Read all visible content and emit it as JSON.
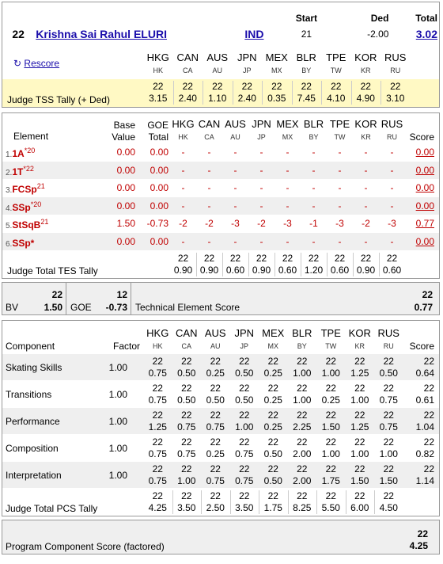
{
  "header": {
    "rank": "22",
    "skater_name": "Krishna Sai Rahul ELURI",
    "nation": "IND",
    "start_label": "Start",
    "start_value": "21",
    "ded_label": "Ded",
    "ded_value": "-2.00",
    "total_label": "Total",
    "total_value": "3.02",
    "rescore_label": "Rescore"
  },
  "judges": [
    {
      "code": "HKG",
      "sub": "HK"
    },
    {
      "code": "CAN",
      "sub": "CA"
    },
    {
      "code": "AUS",
      "sub": "AU"
    },
    {
      "code": "JPN",
      "sub": "JP"
    },
    {
      "code": "MEX",
      "sub": "MX"
    },
    {
      "code": "BLR",
      "sub": "BY"
    },
    {
      "code": "TPE",
      "sub": "TW"
    },
    {
      "code": "KOR",
      "sub": "KR"
    },
    {
      "code": "RUS",
      "sub": "RU"
    }
  ],
  "tss_tally": {
    "label": "Judge TSS Tally (+ Ded)",
    "ranks": [
      "22",
      "22",
      "22",
      "22",
      "22",
      "22",
      "22",
      "22",
      "22"
    ],
    "values": [
      "3.15",
      "2.40",
      "1.10",
      "2.40",
      "0.35",
      "7.45",
      "4.10",
      "4.90",
      "3.10"
    ]
  },
  "elements_table": {
    "col_element": "Element",
    "col_base_1": "Base",
    "col_base_2": "Value",
    "col_goe_1": "GOE",
    "col_goe_2": "Total",
    "col_score": "Score",
    "rows": [
      {
        "idx": "1.",
        "name": "1A",
        "sup": "*20",
        "base": "0.00",
        "goe": "0.00",
        "j": [
          "-",
          "-",
          "-",
          "-",
          "-",
          "-",
          "-",
          "-",
          "-"
        ],
        "score": "0.00"
      },
      {
        "idx": "2.",
        "name": "1T",
        "sup": "*22",
        "base": "0.00",
        "goe": "0.00",
        "j": [
          "-",
          "-",
          "-",
          "-",
          "-",
          "-",
          "-",
          "-",
          "-"
        ],
        "score": "0.00"
      },
      {
        "idx": "3.",
        "name": "FCSp",
        "sup": "21",
        "base": "0.00",
        "goe": "0.00",
        "j": [
          "-",
          "-",
          "-",
          "-",
          "-",
          "-",
          "-",
          "-",
          "-"
        ],
        "score": "0.00"
      },
      {
        "idx": "4.",
        "name": "SSp",
        "sup": "*20",
        "base": "0.00",
        "goe": "0.00",
        "j": [
          "-",
          "-",
          "-",
          "-",
          "-",
          "-",
          "-",
          "-",
          "-"
        ],
        "score": "0.00"
      },
      {
        "idx": "5.",
        "name": "StSqB",
        "sup": "21",
        "base": "1.50",
        "goe": "-0.73",
        "j": [
          "-2",
          "-2",
          "-3",
          "-2",
          "-3",
          "-1",
          "-3",
          "-2",
          "-3"
        ],
        "score": "0.77"
      },
      {
        "idx": "6.",
        "name": "SSp*",
        "sup": "",
        "base": "0.00",
        "goe": "0.00",
        "j": [
          "-",
          "-",
          "-",
          "-",
          "-",
          "-",
          "-",
          "-",
          "-"
        ],
        "score": "0.00"
      }
    ],
    "tes_tally": {
      "label": "Judge Total TES Tally",
      "ranks": [
        "22",
        "22",
        "22",
        "22",
        "22",
        "22",
        "22",
        "22",
        "22"
      ],
      "values": [
        "0.90",
        "0.90",
        "0.60",
        "0.90",
        "0.60",
        "1.20",
        "0.60",
        "0.90",
        "0.60"
      ]
    }
  },
  "summary": {
    "bv_label": "BV",
    "bv_rank": "22",
    "bv_value": "1.50",
    "goe_label": "GOE",
    "goe_rank": "12",
    "goe_value": "-0.73",
    "tes_label": "Technical Element Score",
    "tes_rank": "22",
    "tes_value": "0.77"
  },
  "components_table": {
    "col_component": "Component",
    "col_factor": "Factor",
    "col_score": "Score",
    "rows": [
      {
        "name": "Skating Skills",
        "factor": "1.00",
        "ranks": [
          "22",
          "22",
          "22",
          "22",
          "22",
          "22",
          "22",
          "22",
          "22"
        ],
        "values": [
          "0.75",
          "0.50",
          "0.25",
          "0.50",
          "0.25",
          "1.00",
          "1.00",
          "1.25",
          "0.50"
        ],
        "score_rank": "22",
        "score": "0.64"
      },
      {
        "name": "Transitions",
        "factor": "1.00",
        "ranks": [
          "22",
          "22",
          "22",
          "22",
          "22",
          "22",
          "22",
          "22",
          "22"
        ],
        "values": [
          "0.75",
          "0.50",
          "0.50",
          "0.50",
          "0.25",
          "1.00",
          "0.25",
          "1.00",
          "0.75"
        ],
        "score_rank": "22",
        "score": "0.61"
      },
      {
        "name": "Performance",
        "factor": "1.00",
        "ranks": [
          "22",
          "22",
          "22",
          "22",
          "22",
          "22",
          "22",
          "22",
          "22"
        ],
        "values": [
          "1.25",
          "0.75",
          "0.75",
          "1.00",
          "0.25",
          "2.25",
          "1.50",
          "1.25",
          "0.75"
        ],
        "score_rank": "22",
        "score": "1.04"
      },
      {
        "name": "Composition",
        "factor": "1.00",
        "ranks": [
          "22",
          "22",
          "22",
          "22",
          "22",
          "22",
          "22",
          "22",
          "22"
        ],
        "values": [
          "0.75",
          "0.75",
          "0.25",
          "0.75",
          "0.50",
          "2.00",
          "1.00",
          "1.00",
          "1.00"
        ],
        "score_rank": "22",
        "score": "0.82"
      },
      {
        "name": "Interpretation",
        "factor": "1.00",
        "ranks": [
          "22",
          "22",
          "22",
          "22",
          "22",
          "22",
          "22",
          "22",
          "22"
        ],
        "values": [
          "0.75",
          "1.00",
          "0.75",
          "0.75",
          "0.50",
          "2.00",
          "1.75",
          "1.50",
          "1.50"
        ],
        "score_rank": "22",
        "score": "1.14"
      }
    ],
    "pcs_tally": {
      "label": "Judge Total PCS Tally",
      "ranks": [
        "22",
        "22",
        "22",
        "22",
        "22",
        "22",
        "22",
        "22",
        "22"
      ],
      "values": [
        "4.25",
        "3.50",
        "2.50",
        "3.50",
        "1.75",
        "8.25",
        "5.50",
        "6.00",
        "4.50"
      ]
    }
  },
  "pcs_summary": {
    "label": "Program Component Score (factored)",
    "rank": "22",
    "value": "4.25"
  },
  "colors": {
    "element_red": "#c00000",
    "link_blue": "#1a0dab",
    "tally_yellow": "#fff9c4",
    "row_grey": "#efefef"
  }
}
